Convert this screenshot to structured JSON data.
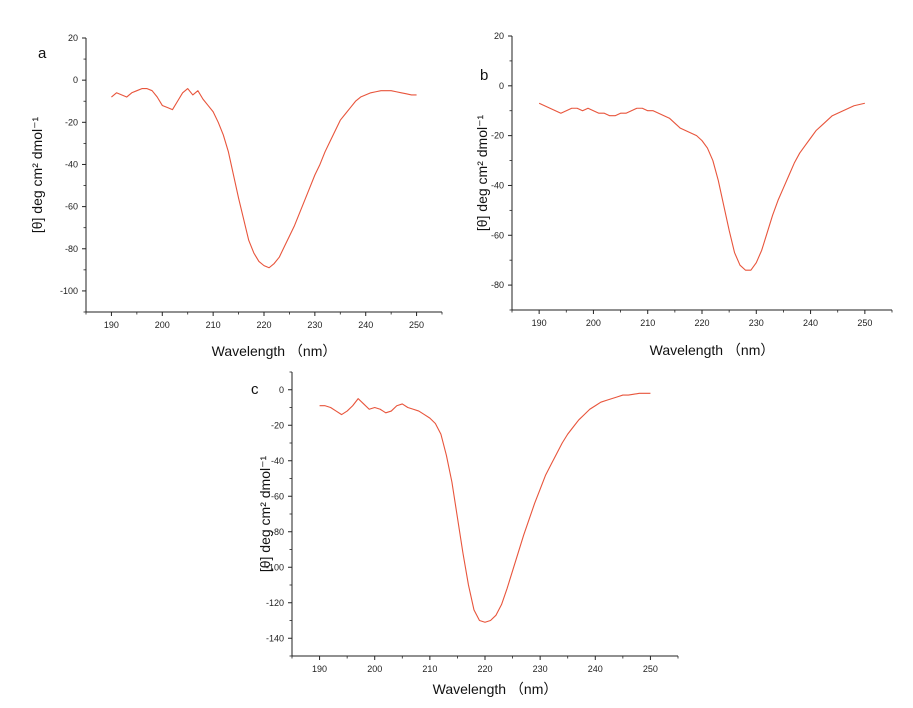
{
  "colors": {
    "series_line": "#e8553c",
    "axis": "#222222",
    "background": "#ffffff"
  },
  "chart_data": [
    {
      "panel": "a",
      "type": "line",
      "xlabel": "Wavelength （nm）",
      "ylabel": "[θ] deg cm² dmol⁻¹",
      "xlim": [
        185,
        255
      ],
      "ylim": [
        -110,
        20
      ],
      "x_ticks": [
        190,
        200,
        210,
        220,
        230,
        240,
        250
      ],
      "y_ticks": [
        20,
        0,
        -20,
        -40,
        -60,
        -80,
        -100
      ],
      "grid": false,
      "x": [
        190,
        191,
        192,
        193,
        194,
        195,
        196,
        197,
        198,
        199,
        200,
        201,
        202,
        203,
        204,
        205,
        206,
        207,
        208,
        209,
        210,
        211,
        212,
        213,
        214,
        215,
        216,
        217,
        218,
        219,
        220,
        221,
        222,
        223,
        224,
        225,
        226,
        227,
        228,
        229,
        230,
        231,
        232,
        233,
        234,
        235,
        236,
        237,
        238,
        239,
        240,
        241,
        242,
        243,
        244,
        245,
        246,
        247,
        248,
        249,
        250
      ],
      "y": [
        -8,
        -6,
        -7,
        -8,
        -6,
        -5,
        -4,
        -4,
        -5,
        -8,
        -12,
        -13,
        -14,
        -10,
        -6,
        -4,
        -7,
        -5,
        -9,
        -12,
        -15,
        -20,
        -26,
        -34,
        -45,
        -56,
        -66,
        -76,
        -82,
        -86,
        -88,
        -89,
        -87,
        -84,
        -79,
        -74,
        -69,
        -63,
        -57,
        -51,
        -45,
        -40,
        -34,
        -29,
        -24,
        -19,
        -16,
        -13,
        -10,
        -8,
        -7,
        -6,
        -5.5,
        -5,
        -5,
        -5,
        -5.5,
        -6,
        -6.5,
        -7,
        -7
      ]
    },
    {
      "panel": "b",
      "type": "line",
      "xlabel": "Wavelength （nm）",
      "ylabel": "[θ] deg cm² dmol⁻¹",
      "xlim": [
        185,
        255
      ],
      "ylim": [
        -90,
        20
      ],
      "x_ticks": [
        190,
        200,
        210,
        220,
        230,
        240,
        250
      ],
      "y_ticks": [
        20,
        0,
        -20,
        -40,
        -60,
        -80
      ],
      "grid": false,
      "x": [
        190,
        191,
        192,
        193,
        194,
        195,
        196,
        197,
        198,
        199,
        200,
        201,
        202,
        203,
        204,
        205,
        206,
        207,
        208,
        209,
        210,
        211,
        212,
        213,
        214,
        215,
        216,
        217,
        218,
        219,
        220,
        221,
        222,
        223,
        224,
        225,
        226,
        227,
        228,
        229,
        230,
        231,
        232,
        233,
        234,
        235,
        236,
        237,
        238,
        239,
        240,
        241,
        242,
        243,
        244,
        245,
        246,
        247,
        248,
        249,
        250
      ],
      "y": [
        -7,
        -8,
        -9,
        -10,
        -11,
        -10,
        -9,
        -9,
        -10,
        -9,
        -10,
        -11,
        -11,
        -12,
        -12,
        -11,
        -11,
        -10,
        -9,
        -9,
        -10,
        -10,
        -11,
        -12,
        -13,
        -15,
        -17,
        -18,
        -19,
        -20,
        -22,
        -25,
        -30,
        -38,
        -48,
        -58,
        -67,
        -72,
        -74,
        -74,
        -71,
        -66,
        -59,
        -52,
        -46,
        -41,
        -36,
        -31,
        -27,
        -24,
        -21,
        -18,
        -16,
        -14,
        -12,
        -11,
        -10,
        -9,
        -8,
        -7.5,
        -7
      ]
    },
    {
      "panel": "c",
      "type": "line",
      "xlabel": "Wavelength （nm）",
      "ylabel": "[θ] deg cm² dmol⁻¹",
      "xlim": [
        185,
        255
      ],
      "ylim": [
        -150,
        10
      ],
      "x_ticks": [
        190,
        200,
        210,
        220,
        230,
        240,
        250
      ],
      "y_ticks": [
        0,
        -20,
        -40,
        -60,
        -80,
        -100,
        -120,
        -140
      ],
      "grid": false,
      "x": [
        190,
        191,
        192,
        193,
        194,
        195,
        196,
        197,
        198,
        199,
        200,
        201,
        202,
        203,
        204,
        205,
        206,
        207,
        208,
        209,
        210,
        211,
        212,
        213,
        214,
        215,
        216,
        217,
        218,
        219,
        220,
        221,
        222,
        223,
        224,
        225,
        226,
        227,
        228,
        229,
        230,
        231,
        232,
        233,
        234,
        235,
        236,
        237,
        238,
        239,
        240,
        241,
        242,
        243,
        244,
        245,
        246,
        247,
        248,
        249,
        250
      ],
      "y": [
        -9,
        -9,
        -10,
        -12,
        -14,
        -12,
        -9,
        -5,
        -8,
        -11,
        -10,
        -11,
        -13,
        -12,
        -9,
        -8,
        -10,
        -11,
        -12,
        -14,
        -16,
        -19,
        -25,
        -37,
        -52,
        -72,
        -92,
        -110,
        -124,
        -130,
        -131,
        -130,
        -127,
        -121,
        -112,
        -102,
        -92,
        -82,
        -73,
        -64,
        -56,
        -48,
        -42,
        -36,
        -30,
        -25,
        -21,
        -17,
        -14,
        -11,
        -9,
        -7,
        -6,
        -5,
        -4,
        -3,
        -3,
        -2.5,
        -2,
        -2,
        -2
      ]
    }
  ]
}
